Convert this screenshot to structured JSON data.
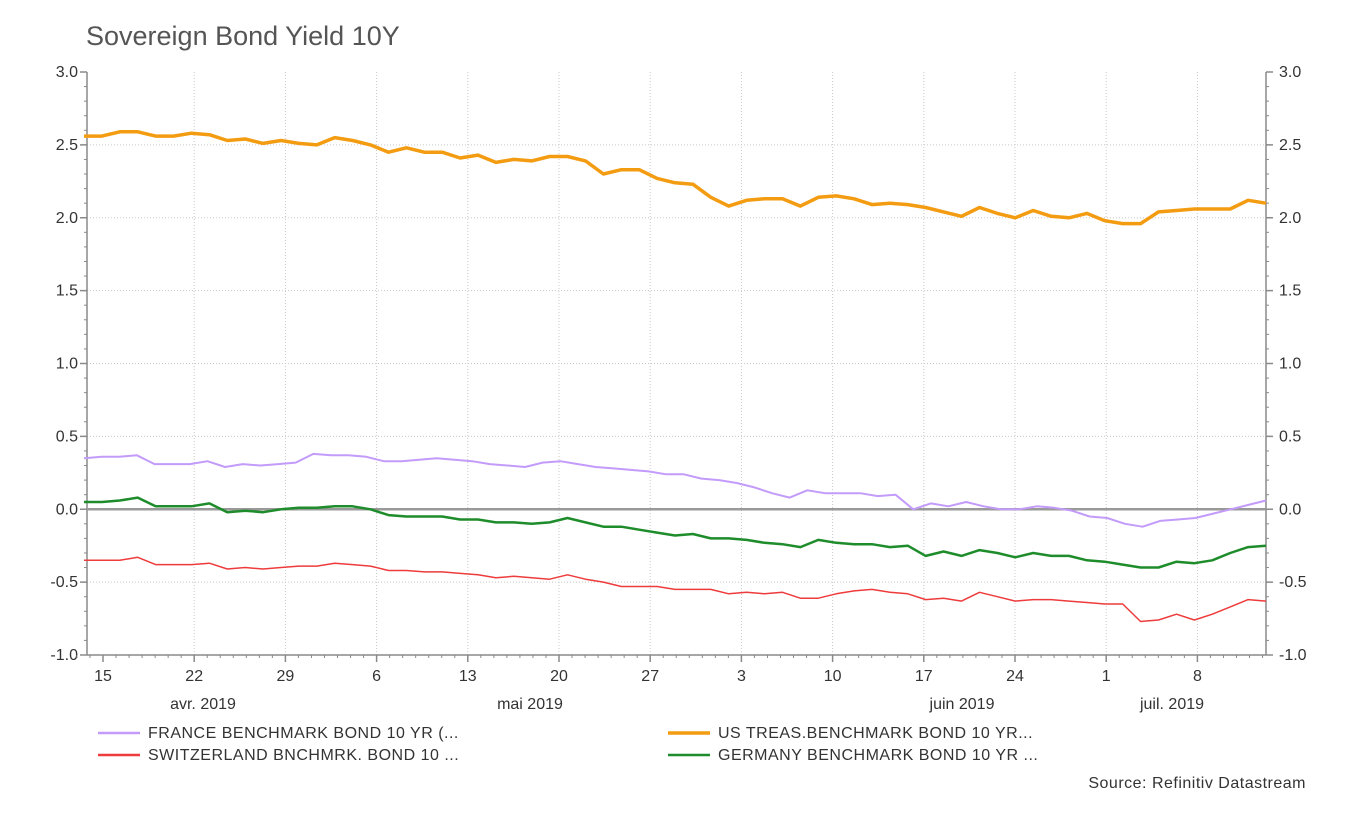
{
  "chart_data": {
    "type": "line",
    "title": "Sovereign Bond Yield 10Y",
    "source": "Source: Refinitiv Datastream",
    "ylim": [
      -1.0,
      3.0
    ],
    "y_ticks": [
      "3.0",
      "2.5",
      "2.0",
      "1.5",
      "1.0",
      "0.5",
      "0.0",
      "-0.5",
      "-1.0"
    ],
    "x_day_labels": [
      "15",
      "22",
      "29",
      "6",
      "13",
      "20",
      "27",
      "3",
      "10",
      "17",
      "24",
      "1",
      "8"
    ],
    "x_month_labels": [
      "avr. 2019",
      "mai 2019",
      "juin 2019",
      "juil. 2019"
    ],
    "grid": true,
    "legend_position": "bottom",
    "zero_line_color": "#999999",
    "series": [
      {
        "name": "FRANCE BENCHMARK BOND 10 YR (...",
        "color": "#c39bfa",
        "values": [
          0.35,
          0.36,
          0.36,
          0.37,
          0.31,
          0.31,
          0.31,
          0.33,
          0.29,
          0.31,
          0.3,
          0.31,
          0.32,
          0.38,
          0.37,
          0.37,
          0.36,
          0.33,
          0.33,
          0.34,
          0.35,
          0.34,
          0.33,
          0.31,
          0.3,
          0.29,
          0.32,
          0.33,
          0.31,
          0.29,
          0.28,
          0.27,
          0.26,
          0.24,
          0.24,
          0.21,
          0.2,
          0.18,
          0.15,
          0.11,
          0.08,
          0.13,
          0.11,
          0.11,
          0.11,
          0.09,
          0.1,
          0.0,
          0.04,
          0.02,
          0.05,
          0.02,
          0.0,
          0.0,
          0.02,
          0.01,
          -0.01,
          -0.05,
          -0.06,
          -0.1,
          -0.12,
          -0.08,
          -0.07,
          -0.06,
          -0.03,
          0.0,
          0.03,
          0.06
        ]
      },
      {
        "name": "US TREAS.BENCHMARK BOND 10 YR...",
        "color": "#f39c12",
        "values": [
          2.56,
          2.56,
          2.59,
          2.59,
          2.56,
          2.56,
          2.58,
          2.57,
          2.53,
          2.54,
          2.51,
          2.53,
          2.51,
          2.5,
          2.55,
          2.53,
          2.5,
          2.45,
          2.48,
          2.45,
          2.45,
          2.41,
          2.43,
          2.38,
          2.4,
          2.39,
          2.42,
          2.42,
          2.39,
          2.3,
          2.33,
          2.33,
          2.27,
          2.24,
          2.23,
          2.14,
          2.08,
          2.12,
          2.13,
          2.13,
          2.08,
          2.14,
          2.15,
          2.13,
          2.09,
          2.1,
          2.09,
          2.07,
          2.04,
          2.01,
          2.07,
          2.03,
          2.0,
          2.05,
          2.01,
          2.0,
          2.03,
          1.98,
          1.96,
          1.96,
          2.04,
          2.05,
          2.06,
          2.06,
          2.06,
          2.12,
          2.1
        ]
      },
      {
        "name": "SWITZERLAND BNCHMRK. BOND 10 ...",
        "color": "#ee3b3b",
        "values": [
          -0.35,
          -0.35,
          -0.35,
          -0.33,
          -0.38,
          -0.38,
          -0.38,
          -0.37,
          -0.41,
          -0.4,
          -0.41,
          -0.4,
          -0.39,
          -0.39,
          -0.37,
          -0.38,
          -0.39,
          -0.42,
          -0.42,
          -0.43,
          -0.43,
          -0.44,
          -0.45,
          -0.47,
          -0.46,
          -0.47,
          -0.48,
          -0.45,
          -0.48,
          -0.5,
          -0.53,
          -0.53,
          -0.53,
          -0.55,
          -0.55,
          -0.55,
          -0.58,
          -0.57,
          -0.58,
          -0.57,
          -0.61,
          -0.61,
          -0.58,
          -0.56,
          -0.55,
          -0.57,
          -0.58,
          -0.62,
          -0.61,
          -0.63,
          -0.57,
          -0.6,
          -0.63,
          -0.62,
          -0.62,
          -0.63,
          -0.64,
          -0.65,
          -0.65,
          -0.77,
          -0.76,
          -0.72,
          -0.76,
          -0.72,
          -0.67,
          -0.62,
          -0.63
        ]
      },
      {
        "name": "GERMANY BENCHMARK BOND 10 YR ...",
        "color": "#1e8c2a",
        "values": [
          0.05,
          0.05,
          0.06,
          0.08,
          0.02,
          0.02,
          0.02,
          0.04,
          -0.02,
          -0.01,
          -0.02,
          0.0,
          0.01,
          0.01,
          0.02,
          0.02,
          0.0,
          -0.04,
          -0.05,
          -0.05,
          -0.05,
          -0.07,
          -0.07,
          -0.09,
          -0.09,
          -0.1,
          -0.09,
          -0.06,
          -0.09,
          -0.12,
          -0.12,
          -0.14,
          -0.16,
          -0.18,
          -0.17,
          -0.2,
          -0.2,
          -0.21,
          -0.23,
          -0.24,
          -0.26,
          -0.21,
          -0.23,
          -0.24,
          -0.24,
          -0.26,
          -0.25,
          -0.32,
          -0.29,
          -0.32,
          -0.28,
          -0.3,
          -0.33,
          -0.3,
          -0.32,
          -0.32,
          -0.35,
          -0.36,
          -0.38,
          -0.4,
          -0.4,
          -0.36,
          -0.37,
          -0.35,
          -0.3,
          -0.26,
          -0.25
        ]
      }
    ]
  }
}
